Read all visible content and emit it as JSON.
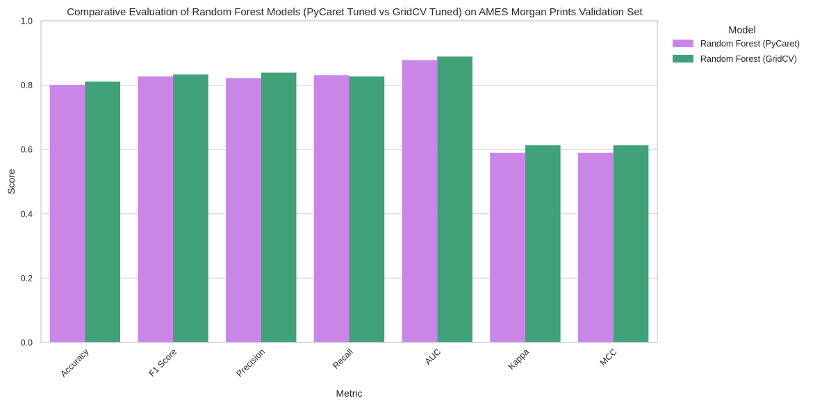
{
  "chart_data": {
    "type": "bar",
    "title": "Comparative Evaluation of Random Forest Models (PyCaret Tuned vs GridCV Tuned) on AMES Morgan Prints Validation Set",
    "xlabel": "Metric",
    "ylabel": "Score",
    "ylim": [
      0,
      1.0
    ],
    "yticks": [
      "0.0",
      "0.2",
      "0.4",
      "0.6",
      "0.8",
      "1.0"
    ],
    "grid": true,
    "legend_position": "outside-top-right",
    "legend_title": "Model",
    "categories": [
      "Accuracy",
      "F1 Score",
      "Precision",
      "Recall",
      "AUC",
      "Kappa",
      "MCC"
    ],
    "series": [
      {
        "name": "Random Forest (PyCaret)",
        "color": "#c986e7",
        "values": [
          0.801,
          0.827,
          0.822,
          0.831,
          0.878,
          0.59,
          0.59
        ]
      },
      {
        "name": "Random Forest (GridCV)",
        "color": "#41a27a",
        "values": [
          0.811,
          0.833,
          0.839,
          0.827,
          0.889,
          0.613,
          0.613
        ]
      }
    ]
  }
}
